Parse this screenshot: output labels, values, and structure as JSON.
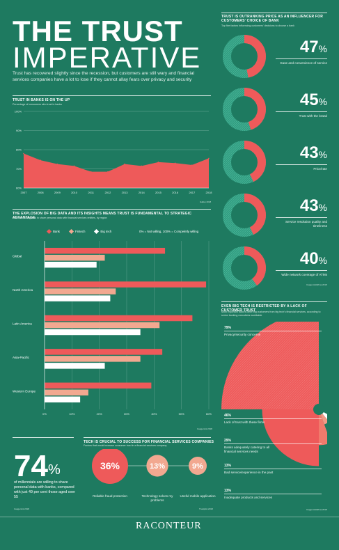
{
  "header": {
    "title_line1": "THE TRUST",
    "title_line2": "IMPERATIVE",
    "intro": "Trust has recovered slightly since the recession, but customers are still wary and financial services companies have a lot to lose if they cannot allay fears over privacy and security"
  },
  "colors": {
    "background": "#1e7a60",
    "bank": "#ee5a5a",
    "fintech": "#f2a890",
    "bigtech": "#ffffff",
    "accent": "#ee5a5a"
  },
  "trust_section": {
    "title": "TRUST IN BANKS IS ON THE UP",
    "subtitle": "Percentage of consumers who trust in banks",
    "source": "Gallup 2018"
  },
  "big_data_section": {
    "title": "THE EXPLOSION OF BIG DATA AND ITS INSIGHTS MEANS TRUST IS FUNDAMENTAL TO STRATEGIC ADVANTAGE",
    "subtitle": "Customer willingness to share personal data with financial services entities, by region",
    "legend": [
      "Bank",
      "Fintech",
      "Big tech"
    ],
    "scale_note": "0% = Not willing, 100% = Compeletly willing",
    "source": "Capgemini 2018"
  },
  "price_section": {
    "title": "TRUST IS OUTRANKING PRICE AS AN INFLUENCER FOR CUSTOMERS' CHOICE OF BANK",
    "subtitle": "Top five factors influencing customers' decisions to choose a bank",
    "source": "Capgemini/Efma 2018",
    "items": [
      {
        "pct": "47",
        "unit": "%",
        "label": "Ease and convenience of service",
        "value": 47
      },
      {
        "pct": "45",
        "unit": "%",
        "label": "Trust with the brand",
        "value": 45
      },
      {
        "pct": "43",
        "unit": "%",
        "label": "Price/rate",
        "value": 43
      },
      {
        "pct": "43",
        "unit": "%",
        "label": "Service resolution quality and timeliness",
        "value": 43
      },
      {
        "pct": "40",
        "unit": "%",
        "label": "Wide network coverage of ATMs",
        "value": 40
      }
    ]
  },
  "bigtech_section": {
    "title": "EVEN BIG TECH IS RESTRICTED BY A LACK OF CUSTOMER TRUST",
    "subtitle": "Most important factors deterring customers from big tech's financial services, according to senior banking executives worldwide",
    "source": "Capgemini/Efma 2018",
    "items": [
      {
        "pct": "79%",
        "label": "Privacy/security concerns",
        "value": 79
      },
      {
        "pct": "46%",
        "label": "Lack of trust with these firms",
        "value": 46
      },
      {
        "pct": "29%",
        "label": "Banks adequately catering to all financial services needs",
        "value": 29
      },
      {
        "pct": "13%",
        "label": "Bad service/experience in the past",
        "value": 13
      },
      {
        "pct": "13%",
        "label": "Inadequate products and services",
        "value": 13
      }
    ]
  },
  "millennials": {
    "number": "74",
    "unit": "%",
    "text": "of millennials are willing to share personal data with banks, compared with just 49 per cent those aged over 55",
    "source": "Capgemini 2018"
  },
  "tech_section": {
    "title": "TECH IS CRUCIAL TO SUCCESS FOR FINANCIAL SERVICES COMPANIES",
    "subtitle": "Factors that would increase consumer trust in a financial services company",
    "source": "Trustpilot 2018",
    "bubbles": [
      {
        "pct": "36%",
        "label": "Reliable fraud protection",
        "value": 36
      },
      {
        "pct": "13%",
        "label": "Technology solves my problems",
        "value": 13
      },
      {
        "pct": "9%",
        "label": "Useful mobile application",
        "value": 9
      }
    ]
  },
  "brand": "RACONTEUR",
  "chart_data": [
    {
      "type": "area",
      "title": "TRUST IN BANKS IS ON THE UP",
      "x": [
        "2007",
        "2008",
        "2009",
        "2010",
        "2011",
        "2012",
        "2013",
        "2014",
        "2015",
        "2016",
        "2017",
        "2018"
      ],
      "y_ticks": [
        "100%",
        "90%",
        "80%",
        "70%",
        "60%"
      ],
      "ylim": [
        60,
        100
      ],
      "series": [
        {
          "values": [
            78,
            74.5,
            72.5,
            71.5,
            68.5,
            68.5,
            72.5,
            71.5,
            73.5,
            73,
            72,
            75.5
          ]
        }
      ]
    },
    {
      "type": "bar",
      "orientation": "horizontal",
      "title": "THE EXPLOSION OF BIG DATA AND ITS INSIGHTS MEANS TRUST IS FUNDAMENTAL TO STRATEGIC ADVANTAGE",
      "categories": [
        "Global",
        "North America",
        "Latin America",
        "Asia-Pacific",
        "Western Europe"
      ],
      "x_ticks": [
        "0%",
        "10%",
        "20%",
        "30%",
        "40%",
        "50%",
        "60%"
      ],
      "xlim": [
        0,
        60
      ],
      "series": [
        {
          "name": "Bank",
          "values": [
            44,
            59,
            54,
            43,
            39
          ]
        },
        {
          "name": "Fintech",
          "values": [
            22,
            26,
            42,
            35,
            16
          ]
        },
        {
          "name": "Big tech",
          "values": [
            19,
            24,
            35,
            22,
            13
          ]
        }
      ]
    }
  ]
}
